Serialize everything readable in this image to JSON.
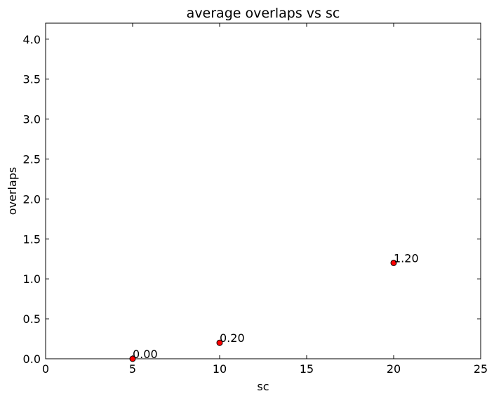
{
  "chart_data": {
    "type": "scatter",
    "title": "average overlaps vs sc",
    "xlabel": "sc",
    "ylabel": "overlaps",
    "xlim": [
      0,
      25
    ],
    "ylim": [
      0,
      4.2
    ],
    "x_ticks": [
      0,
      5,
      10,
      15,
      20,
      25
    ],
    "x_tick_labels": [
      "0",
      "5",
      "10",
      "15",
      "20",
      "25"
    ],
    "y_ticks": [
      0,
      0.5,
      1,
      1.5,
      2,
      2.5,
      3,
      3.5,
      4
    ],
    "y_tick_labels": [
      "0.0",
      "0.5",
      "1.0",
      "1.5",
      "2.0",
      "2.5",
      "3.0",
      "3.5",
      "4.0"
    ],
    "grid": false,
    "legend": "none",
    "series": [
      {
        "color": "#ff0000",
        "x": [
          5,
          10,
          20
        ],
        "y": [
          0.0,
          0.2,
          1.2
        ],
        "labels": [
          "0.00",
          "0.20",
          "1.20"
        ]
      }
    ]
  }
}
